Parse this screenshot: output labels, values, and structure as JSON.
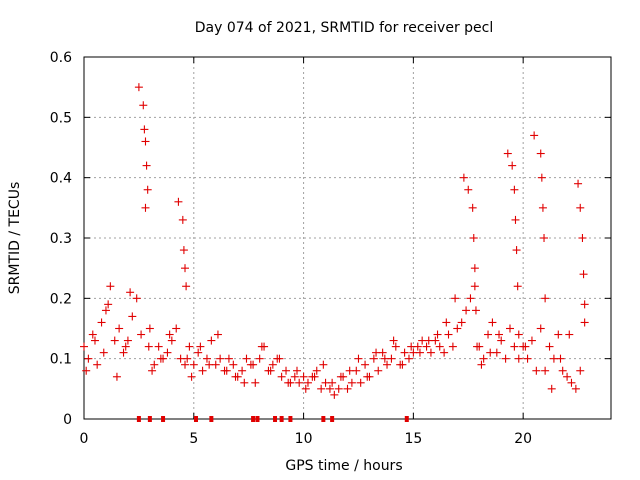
{
  "chart_data": {
    "type": "scatter",
    "title": "Day 074 of 2021, SRMTID for receiver pecl",
    "xlabel": "GPS time / hours",
    "ylabel": "SRMTID / TECUs",
    "xlim": [
      0,
      24
    ],
    "ylim": [
      0,
      0.6
    ],
    "xticks": [
      0,
      5,
      10,
      15,
      20
    ],
    "xtick_labels": [
      "0",
      "5",
      "10",
      "15",
      "20"
    ],
    "yticks": [
      0,
      0.1,
      0.2,
      0.3,
      0.4,
      0.5,
      0.6
    ],
    "ytick_labels": [
      "0",
      "0.1",
      "0.2",
      "0.3",
      "0.4",
      "0.5",
      "0.6"
    ],
    "grid": true,
    "marker": "+",
    "color": "#e00000",
    "series": [
      {
        "name": "SRMTID",
        "x": [
          0.0,
          0.2,
          0.4,
          0.6,
          0.8,
          1.0,
          1.2,
          1.4,
          1.6,
          1.8,
          2.0,
          2.2,
          2.4,
          2.6,
          2.8,
          3.0,
          3.2,
          3.4,
          3.6,
          3.8,
          4.0,
          4.2,
          4.4,
          4.6,
          4.8,
          5.0,
          5.2,
          5.4,
          5.6,
          5.8,
          6.0,
          6.2,
          6.4,
          6.6,
          6.8,
          7.0,
          7.2,
          7.4,
          7.6,
          7.8,
          8.0,
          8.2,
          8.4,
          8.6,
          8.8,
          9.0,
          9.2,
          9.4,
          9.6,
          9.8,
          10.0,
          10.2,
          10.4,
          10.6,
          10.8,
          11.0,
          11.2,
          11.4,
          11.6,
          11.8,
          12.0,
          12.2,
          12.4,
          12.6,
          12.8,
          13.0,
          13.2,
          13.4,
          13.6,
          13.8,
          14.0,
          14.2,
          14.4,
          14.6,
          14.8,
          15.0,
          15.2,
          15.4,
          15.6,
          15.8,
          16.0,
          16.2,
          16.4,
          16.6,
          16.8,
          17.0,
          17.2,
          17.4,
          17.6,
          17.8,
          18.0,
          18.2,
          18.4,
          18.6,
          18.8,
          19.0,
          19.2,
          19.4,
          19.6,
          19.8,
          20.0,
          20.2,
          20.4,
          20.6,
          20.8,
          21.0,
          21.2,
          21.4,
          21.6,
          21.8,
          22.0,
          22.2,
          22.4,
          22.6,
          22.8,
          0.1,
          0.5,
          0.9,
          1.1,
          1.5,
          1.9,
          2.1,
          2.5,
          2.7,
          2.75,
          2.8,
          2.85,
          2.9,
          2.95,
          3.1,
          3.5,
          3.9,
          4.3,
          4.5,
          4.55,
          4.6,
          4.65,
          4.7,
          4.9,
          5.3,
          5.7,
          6.1,
          6.5,
          6.9,
          7.3,
          7.7,
          8.1,
          8.5,
          8.9,
          9.3,
          9.7,
          10.1,
          10.5,
          10.9,
          11.3,
          11.7,
          12.1,
          12.5,
          12.9,
          13.3,
          13.7,
          14.1,
          14.5,
          14.9,
          15.3,
          15.7,
          16.1,
          16.5,
          16.9,
          17.3,
          17.5,
          17.7,
          17.75,
          17.8,
          17.85,
          17.9,
          18.1,
          18.5,
          18.9,
          19.3,
          19.5,
          19.6,
          19.65,
          19.7,
          19.75,
          19.8,
          20.1,
          20.5,
          20.8,
          20.85,
          20.9,
          20.95,
          21.0,
          21.3,
          21.7,
          22.1,
          22.5,
          22.6,
          22.7,
          22.75,
          22.8
        ],
        "y": [
          0.12,
          0.1,
          0.14,
          0.09,
          0.16,
          0.18,
          0.22,
          0.13,
          0.15,
          0.11,
          0.13,
          0.17,
          0.2,
          0.14,
          0.35,
          0.15,
          0.09,
          0.12,
          0.1,
          0.11,
          0.13,
          0.15,
          0.1,
          0.09,
          0.12,
          0.09,
          0.11,
          0.08,
          0.1,
          0.13,
          0.09,
          0.1,
          0.08,
          0.1,
          0.09,
          0.07,
          0.08,
          0.1,
          0.09,
          0.06,
          0.1,
          0.12,
          0.08,
          0.09,
          0.1,
          0.07,
          0.08,
          0.06,
          0.07,
          0.06,
          0.07,
          0.06,
          0.07,
          0.08,
          0.05,
          0.06,
          0.05,
          0.04,
          0.05,
          0.07,
          0.05,
          0.06,
          0.08,
          0.06,
          0.09,
          0.07,
          0.1,
          0.08,
          0.11,
          0.09,
          0.1,
          0.12,
          0.09,
          0.11,
          0.1,
          0.11,
          0.12,
          0.13,
          0.12,
          0.11,
          0.13,
          0.12,
          0.11,
          0.14,
          0.12,
          0.15,
          0.16,
          0.18,
          0.2,
          0.22,
          0.12,
          0.1,
          0.14,
          0.16,
          0.11,
          0.13,
          0.1,
          0.15,
          0.12,
          0.14,
          0.12,
          0.1,
          0.13,
          0.08,
          0.15,
          0.2,
          0.12,
          0.1,
          0.14,
          0.08,
          0.07,
          0.06,
          0.05,
          0.08,
          0.16,
          0.08,
          0.13,
          0.11,
          0.19,
          0.07,
          0.12,
          0.21,
          0.55,
          0.52,
          0.48,
          0.46,
          0.42,
          0.38,
          0.12,
          0.08,
          0.1,
          0.14,
          0.36,
          0.33,
          0.28,
          0.25,
          0.22,
          0.1,
          0.07,
          0.12,
          0.09,
          0.14,
          0.08,
          0.07,
          0.06,
          0.09,
          0.12,
          0.08,
          0.1,
          0.06,
          0.08,
          0.05,
          0.07,
          0.09,
          0.06,
          0.07,
          0.08,
          0.1,
          0.07,
          0.11,
          0.1,
          0.13,
          0.09,
          0.12,
          0.11,
          0.13,
          0.14,
          0.16,
          0.2,
          0.4,
          0.38,
          0.35,
          0.3,
          0.25,
          0.18,
          0.12,
          0.09,
          0.11,
          0.14,
          0.44,
          0.42,
          0.38,
          0.33,
          0.28,
          0.22,
          0.1,
          0.12,
          0.47,
          0.44,
          0.4,
          0.35,
          0.3,
          0.08,
          0.05,
          0.1,
          0.14,
          0.39,
          0.35,
          0.3,
          0.24,
          0.19
        ]
      }
    ],
    "flags_at_zero_x": [
      2.5,
      3.0,
      3.6,
      5.1,
      5.8,
      7.7,
      7.9,
      8.7,
      9.0,
      9.4,
      10.9,
      11.3,
      14.7
    ]
  }
}
